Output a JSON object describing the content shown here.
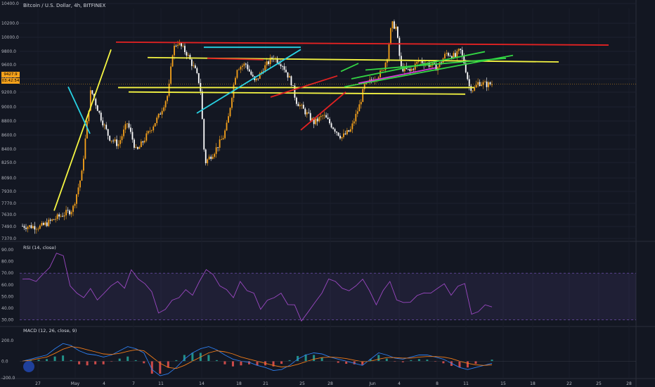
{
  "header": {
    "title": "Bitcoin / U.S. Dollar, 4h, BITFINEX"
  },
  "badges": {
    "price": "9427.9",
    "timer": "03:42:54"
  },
  "colors": {
    "bg": "#131722",
    "up": "#f7a21b",
    "down": "#ffffff",
    "yellow": "#f5f542",
    "red": "#e32222",
    "cyan": "#28d2e3",
    "green": "#33d643",
    "magenta": "#d63ad9",
    "rsi": "#9b48c2",
    "macd": "#2e7ff0",
    "signal": "#f07b18",
    "hist_up": "#26a69a",
    "hist_dn": "#ef5350"
  },
  "chart_data": [
    {
      "type": "candlestick",
      "title": "Bitcoin / U.S. Dollar, 4h, BITFINEX",
      "ylim": [
        7310,
        10460
      ],
      "yticks": [
        "10400.0",
        "10200.0",
        "10000.0",
        "9800.0",
        "9600.0",
        "9400.0",
        "9200.0",
        "9000.0",
        "8800.0",
        "8600.0",
        "8400.0",
        "8250.0",
        "8090.0",
        "7930.0",
        "7770.0",
        "7630.0",
        "7490.0",
        "7370.0"
      ],
      "xticks": [
        "27",
        "May",
        "4",
        "7",
        "11",
        "14",
        "18",
        "21",
        "25",
        "28",
        "Jun",
        "4",
        "8",
        "11",
        "15",
        "18",
        "22",
        "25",
        "28"
      ],
      "price_path": [
        [
          0,
          7490
        ],
        [
          4,
          7480
        ],
        [
          8,
          7620
        ],
        [
          10,
          7680
        ],
        [
          11,
          7720
        ],
        [
          13,
          8200
        ],
        [
          14,
          8800
        ],
        [
          15,
          9350
        ],
        [
          17,
          9000
        ],
        [
          19,
          8700
        ],
        [
          21,
          8600
        ],
        [
          23,
          8900
        ],
        [
          25,
          8500
        ],
        [
          27,
          8700
        ],
        [
          29,
          8900
        ],
        [
          30,
          9000
        ],
        [
          32,
          9300
        ],
        [
          33,
          9900
        ],
        [
          34,
          10000
        ],
        [
          36,
          9850
        ],
        [
          38,
          9600
        ],
        [
          39,
          9400
        ],
        [
          40,
          8350
        ],
        [
          42,
          8500
        ],
        [
          44,
          8700
        ],
        [
          45,
          8900
        ],
        [
          46,
          9300
        ],
        [
          47,
          9650
        ],
        [
          49,
          9700
        ],
        [
          51,
          9450
        ],
        [
          53,
          9650
        ],
        [
          55,
          9800
        ],
        [
          57,
          9700
        ],
        [
          59,
          9450
        ],
        [
          60,
          9200
        ],
        [
          62,
          9050
        ],
        [
          64,
          8900
        ],
        [
          66,
          9000
        ],
        [
          68,
          8850
        ],
        [
          70,
          8700
        ],
        [
          72,
          8800
        ],
        [
          74,
          9150
        ],
        [
          75,
          9400
        ],
        [
          77,
          9500
        ],
        [
          79,
          9600
        ],
        [
          80,
          9800
        ],
        [
          81,
          10250
        ],
        [
          82,
          10200
        ],
        [
          83,
          9650
        ],
        [
          85,
          9600
        ],
        [
          87,
          9750
        ],
        [
          89,
          9700
        ],
        [
          91,
          9650
        ],
        [
          93,
          9850
        ],
        [
          95,
          9800
        ],
        [
          96,
          9900
        ],
        [
          97,
          9700
        ],
        [
          98,
          9400
        ],
        [
          99,
          9350
        ],
        [
          100,
          9450
        ],
        [
          102,
          9420
        ],
        [
          103,
          9430
        ]
      ],
      "annotations": {
        "lines_yellow": [
          [
            [
              77,
              7700
            ],
            [
              158,
              9900
            ]
          ],
          [
            [
              210,
              9790
            ],
            [
              795,
              9730
            ]
          ],
          [
            [
              168,
              9380
            ],
            [
              675,
              9380
            ]
          ],
          [
            [
              183,
              9320
            ],
            [
              662,
              9290
            ]
          ]
        ],
        "lines_red": [
          [
            [
              165,
              10000
            ],
            [
              866,
              9960
            ]
          ],
          [
            [
              295,
              9780
            ],
            [
              375,
              9760
            ]
          ],
          [
            [
              385,
              9250
            ],
            [
              480,
              9540
            ]
          ],
          [
            [
              428,
              8800
            ],
            [
              492,
              9320
            ]
          ]
        ],
        "lines_cyan": [
          [
            [
              97,
              9390
            ],
            [
              128,
              8750
            ]
          ],
          [
            [
              280,
              9030
            ],
            [
              428,
              9900
            ]
          ],
          [
            [
              290,
              9930
            ],
            [
              428,
              9930
            ]
          ]
        ],
        "lines_green": [
          [
            [
              485,
              9600
            ],
            [
              510,
              9710
            ]
          ],
          [
            [
              490,
              9390
            ],
            [
              730,
              9820
            ]
          ],
          [
            [
              500,
              9500
            ],
            [
              690,
              9870
            ]
          ],
          [
            [
              520,
              9620
            ],
            [
              720,
              9780
            ]
          ]
        ],
        "lines_magenta": [
          [
            [
              510,
              9440
            ],
            [
              620,
              9650
            ]
          ]
        ]
      }
    },
    {
      "type": "line",
      "title": "RSI (14, close)",
      "ylim": [
        25,
        96
      ],
      "yticks": [
        "90.00",
        "80.00",
        "70.00",
        "60.00",
        "50.00",
        "40.00",
        "30.00"
      ],
      "band": [
        30,
        70
      ],
      "series": [
        {
          "name": "RSI",
          "values": [
            64,
            66,
            62,
            70,
            74,
            88,
            84,
            60,
            52,
            50,
            56,
            48,
            52,
            60,
            62,
            58,
            72,
            66,
            60,
            55,
            35,
            40,
            46,
            50,
            55,
            52,
            62,
            74,
            68,
            60,
            55,
            50,
            62,
            56,
            52,
            40,
            46,
            50,
            52,
            44,
            42,
            30,
            36,
            46,
            52,
            66,
            62,
            58,
            54,
            60,
            64,
            56,
            42,
            56,
            62,
            48,
            44,
            46,
            50,
            54,
            52,
            58,
            60,
            52,
            58,
            62,
            34,
            38,
            42,
            42
          ]
        }
      ]
    },
    {
      "type": "line",
      "title": "MACD (12, 26, close, 9)",
      "ylim": [
        -160,
        320
      ],
      "yticks": [
        "200.0",
        "0.0",
        "-200.0"
      ],
      "series": [
        {
          "name": "MACD",
          "values": [
            0,
            20,
            40,
            60,
            120,
            170,
            150,
            100,
            70,
            60,
            40,
            60,
            100,
            140,
            120,
            80,
            -80,
            -140,
            -120,
            -60,
            20,
            80,
            120,
            140,
            110,
            60,
            20,
            0,
            -10,
            -40,
            -60,
            -90,
            -80,
            -40,
            20,
            60,
            80,
            70,
            40,
            20,
            0,
            -20,
            -40,
            20,
            80,
            60,
            30,
            20,
            40,
            60,
            60,
            40,
            20,
            -20,
            -60,
            -80,
            -60,
            -40,
            -20
          ]
        },
        {
          "name": "Signal",
          "values": [
            0,
            10,
            25,
            40,
            75,
            115,
            140,
            130,
            110,
            90,
            70,
            65,
            75,
            95,
            110,
            100,
            40,
            -20,
            -60,
            -70,
            -40,
            0,
            40,
            80,
            100,
            90,
            70,
            40,
            20,
            0,
            -20,
            -40,
            -55,
            -50,
            -30,
            -5,
            20,
            35,
            40,
            35,
            25,
            10,
            -5,
            0,
            20,
            35,
            35,
            30,
            30,
            40,
            45,
            45,
            40,
            25,
            0,
            -20,
            -35,
            -40,
            -35
          ]
        }
      ]
    }
  ]
}
